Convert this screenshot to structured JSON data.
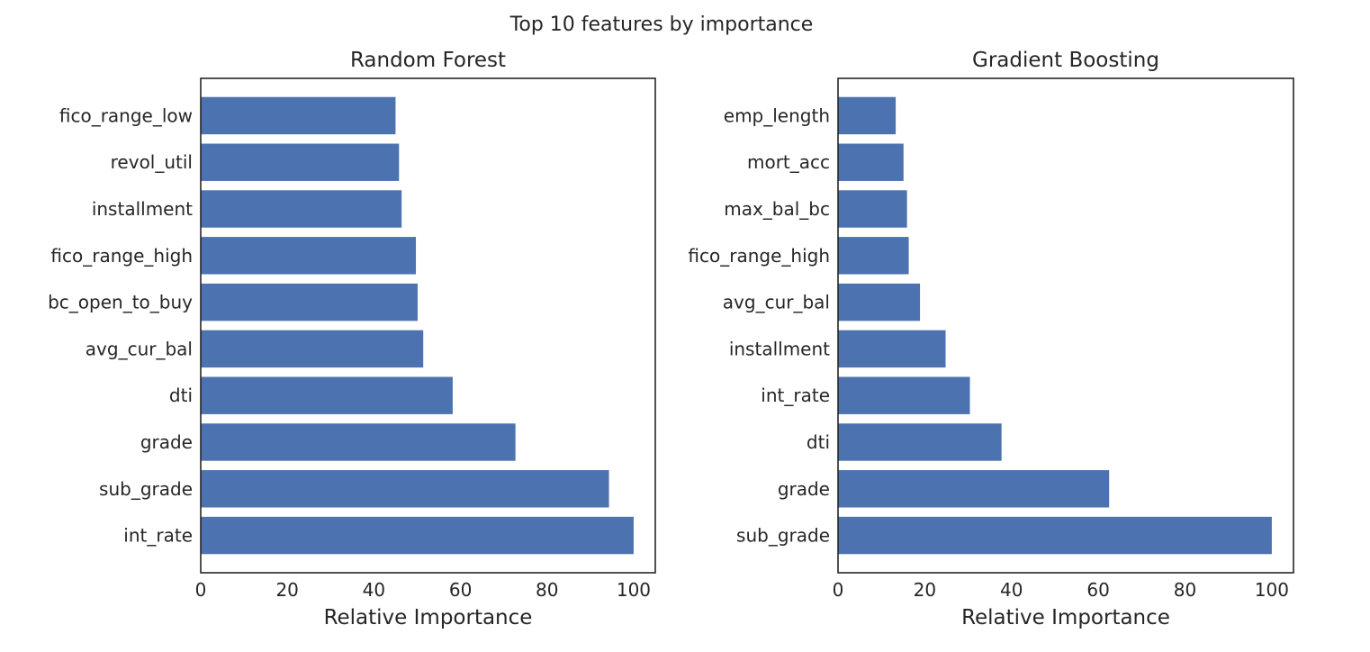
{
  "figure": {
    "suptitle": "Top 10 features by importance",
    "bar_color": "#4C72B0"
  },
  "chart_data": [
    {
      "type": "bar",
      "orientation": "horizontal",
      "title": "Random Forest",
      "xlabel": "Relative Importance",
      "ylabel": "",
      "xlim": [
        0,
        105
      ],
      "xticks": [
        0,
        20,
        40,
        60,
        80,
        100
      ],
      "grid": false,
      "categories": [
        "int_rate",
        "sub_grade",
        "grade",
        "dti",
        "avg_cur_bal",
        "bc_open_to_buy",
        "fico_range_high",
        "installment",
        "revol_util",
        "fico_range_low"
      ],
      "values": [
        100,
        94.3,
        72.7,
        58.2,
        51.4,
        50.1,
        49.7,
        46.4,
        45.8,
        45.0
      ]
    },
    {
      "type": "bar",
      "orientation": "horizontal",
      "title": "Gradient Boosting",
      "xlabel": "Relative Importance",
      "ylabel": "",
      "xlim": [
        0,
        105
      ],
      "xticks": [
        0,
        20,
        40,
        60,
        80,
        100
      ],
      "grid": false,
      "categories": [
        "sub_grade",
        "grade",
        "dti",
        "int_rate",
        "installment",
        "avg_cur_bal",
        "fico_range_high",
        "max_bal_bc",
        "mort_acc",
        "emp_length"
      ],
      "values": [
        100,
        62.5,
        37.7,
        30.4,
        24.8,
        18.9,
        16.3,
        15.9,
        15.1,
        13.3
      ]
    }
  ]
}
